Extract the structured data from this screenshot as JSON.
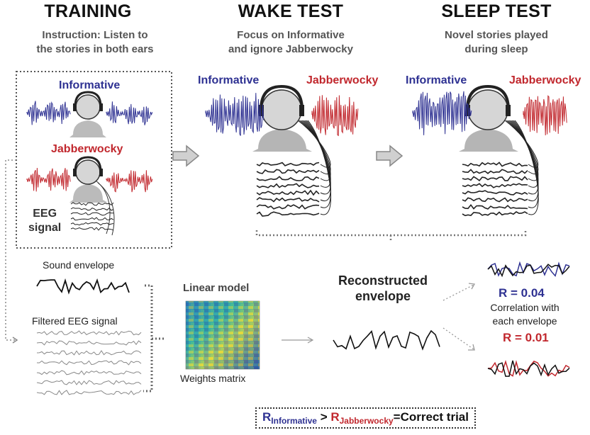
{
  "columns": {
    "training": {
      "title": "TRAINING",
      "subtitle_l1": "Instruction: Listen to",
      "subtitle_l2": "the stories in both ears"
    },
    "wake": {
      "title": "WAKE TEST",
      "subtitle_l1": "Focus on Informative",
      "subtitle_l2": "and ignore Jabberwocky"
    },
    "sleep": {
      "title": "SLEEP TEST",
      "subtitle_l1": "Novel stories played",
      "subtitle_l2": "during sleep"
    }
  },
  "stimuli": {
    "informative": "Informative",
    "jabberwocky": "Jabberwocky"
  },
  "eeg_label_l1": "EEG",
  "eeg_label_l2": "signal",
  "pipeline": {
    "sound_envelope": "Sound envelope",
    "filtered_eeg": "Filtered EEG signal",
    "linear_model": "Linear model",
    "weights_matrix": "Weights matrix",
    "reconstructed_l1": "Reconstructed",
    "reconstructed_l2": "envelope"
  },
  "results": {
    "r_informative": "R = 0.04",
    "r_jabberwocky": "R = 0.01",
    "correlation_l1": "Correlation with",
    "correlation_l2": "each envelope"
  },
  "legend": {
    "r_symbol": "R",
    "informative": "Informative",
    "gt": " > ",
    "jabberwocky": "Jabberwocky",
    "equals": "=",
    "result": "Correct trial"
  },
  "colors": {
    "blue": "#2e3192",
    "red": "#c1272d",
    "gray": "#888888"
  }
}
